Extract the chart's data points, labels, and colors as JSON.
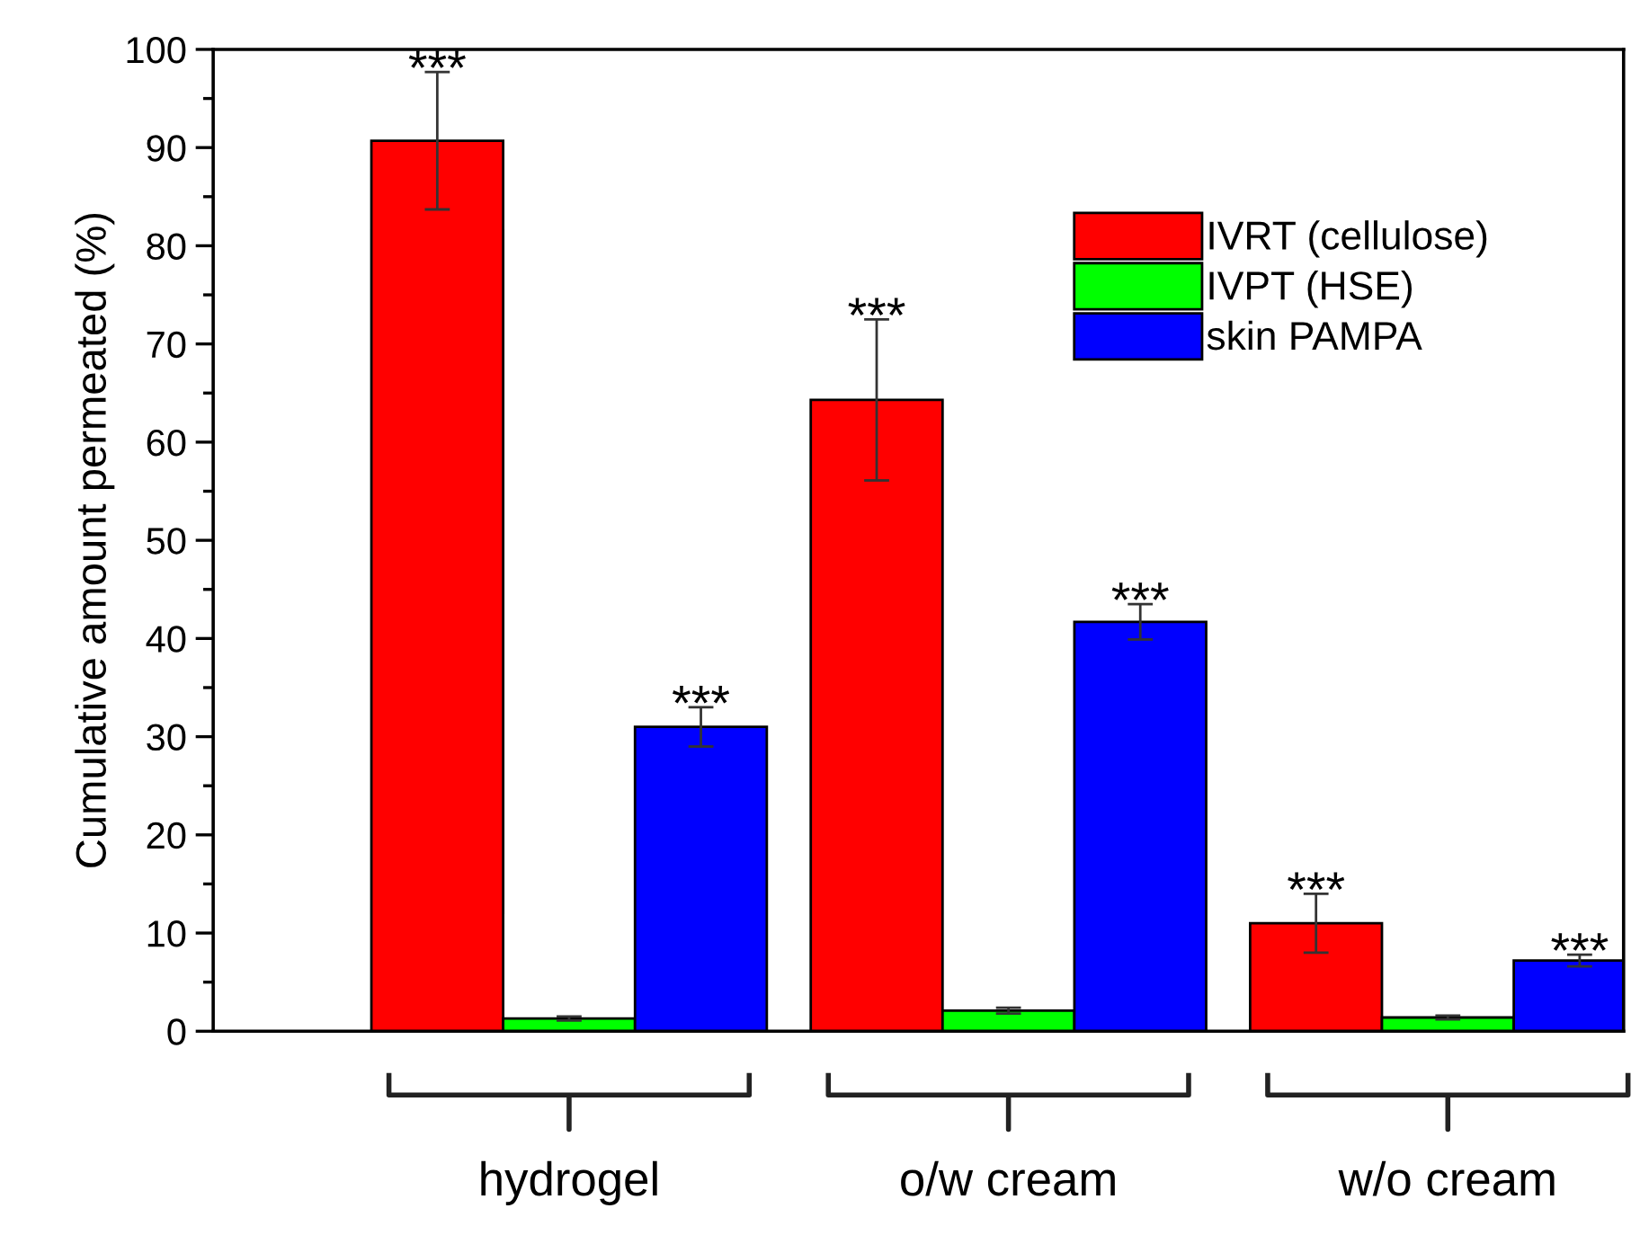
{
  "chart_data": {
    "type": "bar",
    "ylabel": "Cumulative amount permeated (%)",
    "categories": [
      "hydrogel",
      "o/w cream",
      "w/o cream"
    ],
    "series": [
      {
        "name": "IVRT (cellulose)",
        "color": "#ff0000",
        "values": [
          90.7,
          64.3,
          11.0
        ],
        "errors": [
          7.0,
          8.2,
          3.0
        ],
        "value_labels": [
          "***",
          "***",
          "***"
        ]
      },
      {
        "name": "IVPT (HSE)",
        "color": "#00ff00",
        "values": [
          1.3,
          2.1,
          1.4
        ],
        "errors": [
          0.2,
          0.3,
          0.2
        ]
      },
      {
        "name": "skin PAMPA",
        "color": "#0000ff",
        "values": [
          31.0,
          41.7,
          7.2
        ],
        "errors": [
          2.0,
          1.8,
          0.6
        ],
        "value_labels": [
          "***",
          "***",
          "***"
        ]
      }
    ],
    "ylim": [
      0,
      100
    ],
    "yticks": [
      0,
      10,
      20,
      30,
      40,
      50,
      60,
      70,
      80,
      90,
      100
    ],
    "legend": "top right",
    "grid": false
  }
}
